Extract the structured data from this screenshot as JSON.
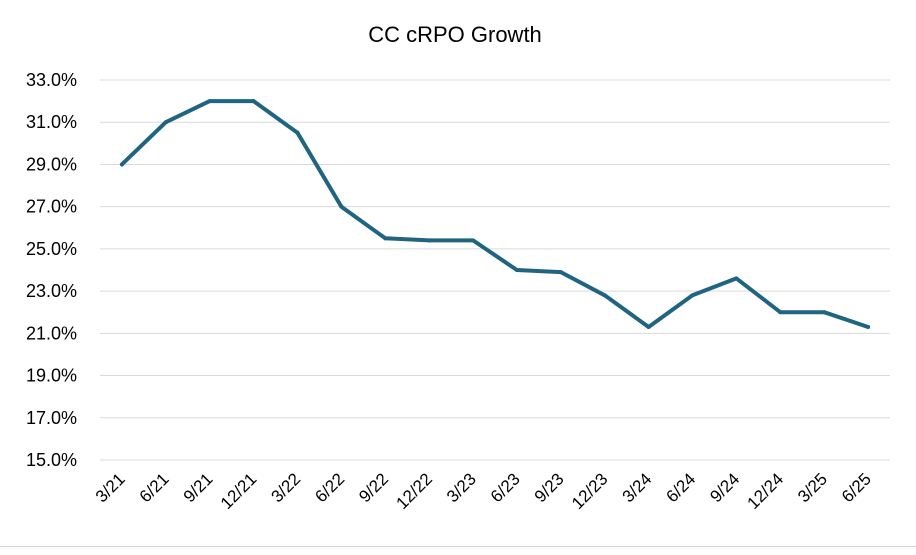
{
  "chart_data": {
    "type": "line",
    "title": "CC cRPO Growth",
    "xlabel": "",
    "ylabel": "",
    "categories": [
      "3/21",
      "6/21",
      "9/21",
      "12/21",
      "3/22",
      "6/22",
      "9/22",
      "12/22",
      "3/23",
      "6/23",
      "9/23",
      "12/23",
      "3/24",
      "6/24",
      "9/24",
      "12/24",
      "3/25",
      "6/25"
    ],
    "series": [
      {
        "values": [
          29.0,
          31.0,
          32.0,
          32.0,
          30.5,
          27.0,
          25.5,
          25.4,
          25.4,
          24.0,
          23.9,
          22.8,
          21.3,
          22.8,
          23.6,
          22.0,
          22.0,
          21.3
        ],
        "color": "#1f6480"
      }
    ],
    "ylim": [
      15.0,
      33.0
    ],
    "yticks": [
      "15.0%",
      "17.0%",
      "19.0%",
      "21.0%",
      "23.0%",
      "25.0%",
      "27.0%",
      "29.0%",
      "31.0%",
      "33.0%"
    ],
    "ytick_values": [
      15,
      17,
      19,
      21,
      23,
      25,
      27,
      29,
      31,
      33
    ],
    "grid": true,
    "legend": "none"
  },
  "colors": {
    "line": "#1f6480",
    "grid": "#d9d9d9",
    "text": "#000000"
  }
}
